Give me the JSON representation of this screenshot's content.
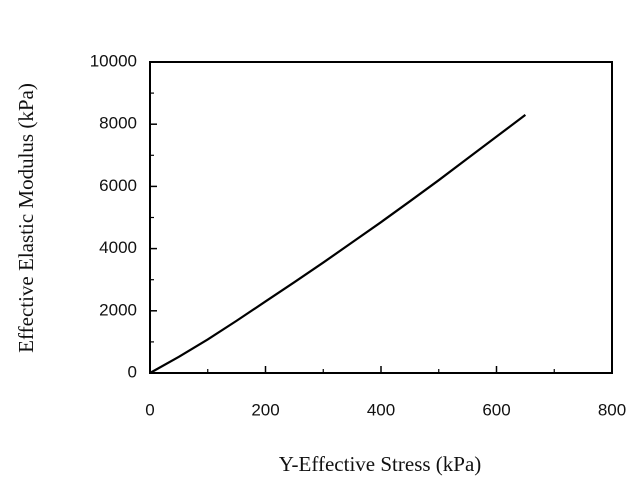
{
  "chart_data": {
    "type": "line",
    "x_label": "Y-Effective Stress (kPa)",
    "y_label": "Effective Elastic Modulus (kPa)",
    "x": [
      0,
      50,
      100,
      150,
      200,
      250,
      300,
      350,
      400,
      450,
      500,
      550,
      600,
      650
    ],
    "series": [
      {
        "color": "#000000",
        "values": [
          0,
          520,
          1080,
          1680,
          2300,
          2920,
          3550,
          4200,
          4850,
          5520,
          6200,
          6900,
          7600,
          8300
        ]
      }
    ],
    "xlim": [
      0,
      800
    ],
    "xticks": [
      0,
      200,
      400,
      600,
      800
    ],
    "xminorticks": [
      100,
      300,
      500,
      700
    ],
    "ylim": [
      0,
      10000
    ],
    "yticks": [
      0,
      2000,
      4000,
      6000,
      8000,
      10000
    ],
    "yminorticks": [
      1000,
      3000,
      5000,
      7000,
      9000
    ]
  }
}
